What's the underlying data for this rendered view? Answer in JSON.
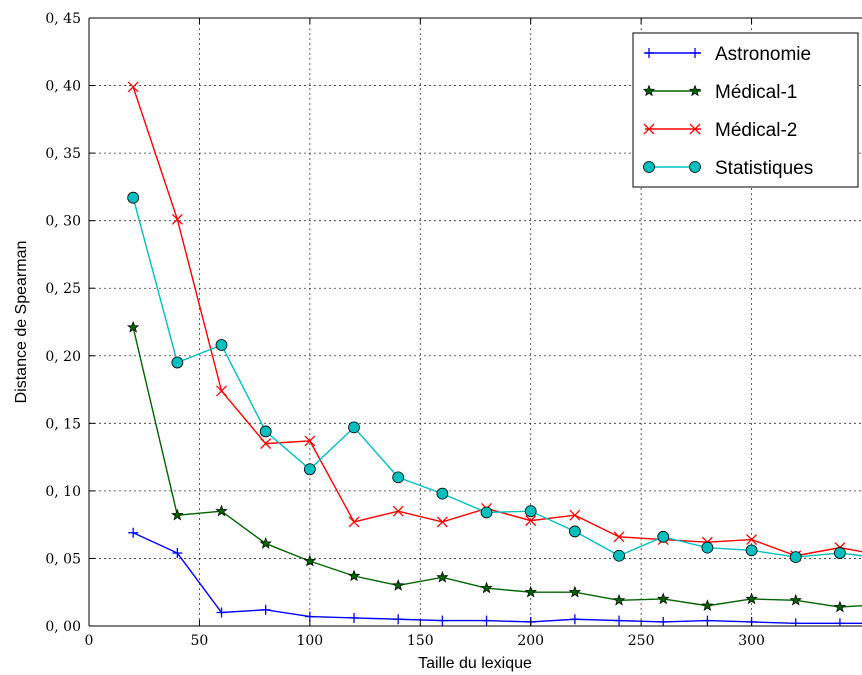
{
  "chart_data": {
    "type": "line",
    "xlabel": "Taille du lexique",
    "ylabel": "Distance de Spearman",
    "xlim": [
      0,
      350
    ],
    "ylim": [
      0,
      0.45
    ],
    "xticks": [
      0,
      50,
      100,
      150,
      200,
      250,
      300
    ],
    "xtick_labels": [
      "0",
      "50",
      "100",
      "150",
      "200",
      "250",
      "300"
    ],
    "yticks": [
      0,
      0.05,
      0.1,
      0.15,
      0.2,
      0.25,
      0.3,
      0.35,
      0.4,
      0.45
    ],
    "ytick_labels": [
      "0, 00",
      "0, 05",
      "0, 10",
      "0, 15",
      "0, 20",
      "0, 25",
      "0, 30",
      "0, 35",
      "0, 40",
      "0, 45"
    ],
    "grid": true,
    "legend_position": "top-right",
    "x": [
      20,
      40,
      60,
      80,
      100,
      120,
      140,
      160,
      180,
      200,
      220,
      240,
      260,
      280,
      300,
      320,
      340,
      360
    ],
    "series": [
      {
        "name": "Astronomie",
        "color": "#0000ff",
        "marker": "plus",
        "values": [
          0.069,
          0.054,
          0.01,
          0.012,
          0.007,
          0.006,
          0.005,
          0.004,
          0.004,
          0.003,
          0.005,
          0.004,
          0.003,
          0.004,
          0.003,
          0.002,
          0.002,
          0.002
        ]
      },
      {
        "name": "Médical-1",
        "color": "#006400",
        "marker": "star",
        "values": [
          0.221,
          0.082,
          0.085,
          0.061,
          0.048,
          0.037,
          0.03,
          0.036,
          0.028,
          0.025,
          0.025,
          0.019,
          0.02,
          0.015,
          0.02,
          0.019,
          0.014,
          0.016
        ]
      },
      {
        "name": "Médical-2",
        "color": "#ff0000",
        "marker": "x",
        "values": [
          0.399,
          0.301,
          0.174,
          0.135,
          0.137,
          0.077,
          0.085,
          0.077,
          0.087,
          0.078,
          0.082,
          0.066,
          0.064,
          0.062,
          0.064,
          0.052,
          0.058,
          0.052
        ]
      },
      {
        "name": "Statistiques",
        "color": "#00bfbf",
        "marker": "circle",
        "values": [
          0.317,
          0.195,
          0.208,
          0.144,
          0.116,
          0.147,
          0.11,
          0.098,
          0.084,
          0.085,
          0.07,
          0.052,
          0.066,
          0.058,
          0.056,
          0.051,
          0.054,
          0.05
        ]
      }
    ]
  }
}
